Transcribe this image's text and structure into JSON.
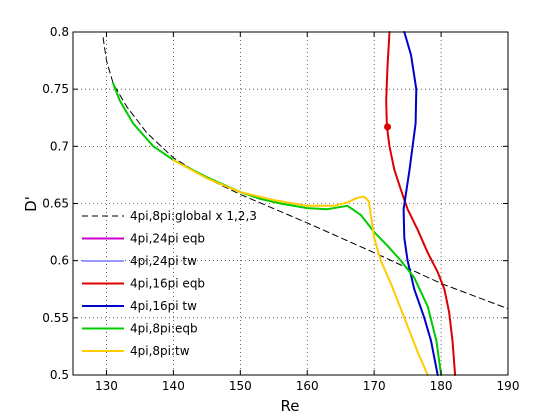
{
  "chart_data": {
    "type": "line",
    "title": "",
    "xlabel": "Re",
    "ylabel": "D'",
    "xlim": [
      125,
      190
    ],
    "ylim": [
      0.5,
      0.8
    ],
    "xticks": [
      130,
      140,
      150,
      160,
      170,
      180,
      190
    ],
    "yticks": [
      0.5,
      0.55,
      0.6,
      0.65,
      0.7,
      0.75,
      0.8
    ],
    "xtick_labels": [
      "130",
      "140",
      "150",
      "160",
      "170",
      "180",
      "190"
    ],
    "ytick_labels": [
      "0.5",
      "0.55",
      "0.6",
      "0.65",
      "0.7",
      "0.75",
      "0.8"
    ],
    "grid": true,
    "grid_style": "dotted",
    "legend_position": "lower-left",
    "series": [
      {
        "name": "4pi,8pi:global x 1,2,3",
        "color": "#000000",
        "dash": "dashed",
        "x": [
          129.5,
          130,
          131,
          133,
          136,
          140,
          145,
          150,
          160,
          170,
          180,
          190
        ],
        "y": [
          0.795,
          0.775,
          0.755,
          0.735,
          0.712,
          0.69,
          0.672,
          0.658,
          0.633,
          0.607,
          0.58,
          0.558
        ]
      },
      {
        "name": "4pi,24pi eqb",
        "color": "#cc00cc",
        "dash": "solid",
        "x": [],
        "y": []
      },
      {
        "name": "4pi,24pi tw",
        "color": "#9999ff",
        "dash": "solid",
        "x": [],
        "y": []
      },
      {
        "name": "4pi,16pi eqb",
        "color": "#dd0000",
        "dash": "solid",
        "x": [
          172.3,
          172,
          171.8,
          171.9,
          172.3,
          173,
          174,
          175,
          176.5,
          178,
          179.5,
          180.5,
          181.2,
          181.7,
          182.1
        ],
        "y": [
          0.8,
          0.77,
          0.74,
          0.717,
          0.7,
          0.68,
          0.662,
          0.645,
          0.627,
          0.607,
          0.59,
          0.575,
          0.555,
          0.53,
          0.5
        ]
      },
      {
        "name": "4pi,16pi tw",
        "color": "#0000cc",
        "dash": "solid",
        "x": [
          174.5,
          175.5,
          176.3,
          176.2,
          175.3,
          174.4,
          174.5,
          175,
          176,
          177.5,
          178.5,
          179.5
        ],
        "y": [
          0.8,
          0.78,
          0.75,
          0.72,
          0.68,
          0.645,
          0.62,
          0.6,
          0.575,
          0.55,
          0.53,
          0.5
        ]
      },
      {
        "name": "4pi,8pi:eqb",
        "color": "#00cc00",
        "dash": "solid",
        "x": [
          131,
          132,
          134,
          137,
          140,
          145,
          150,
          153,
          156,
          160,
          163,
          166,
          168,
          170,
          172,
          174,
          176,
          178,
          179.3,
          180
        ],
        "y": [
          0.755,
          0.74,
          0.72,
          0.7,
          0.688,
          0.673,
          0.66,
          0.654,
          0.65,
          0.646,
          0.645,
          0.648,
          0.64,
          0.625,
          0.613,
          0.6,
          0.585,
          0.56,
          0.53,
          0.5
        ]
      },
      {
        "name": "4pi,8pi:tw",
        "color": "#ffcc00",
        "dash": "solid",
        "x": [
          140,
          145,
          150,
          155,
          160,
          164,
          166,
          167.5,
          168.5,
          169.2,
          170,
          171,
          172.5,
          174.5,
          176.5,
          178
        ],
        "y": [
          0.688,
          0.672,
          0.66,
          0.653,
          0.648,
          0.648,
          0.651,
          0.655,
          0.656,
          0.652,
          0.62,
          0.6,
          0.58,
          0.55,
          0.52,
          0.5
        ]
      }
    ],
    "marker": {
      "x": 172,
      "y": 0.717,
      "color": "#dd0000"
    }
  }
}
